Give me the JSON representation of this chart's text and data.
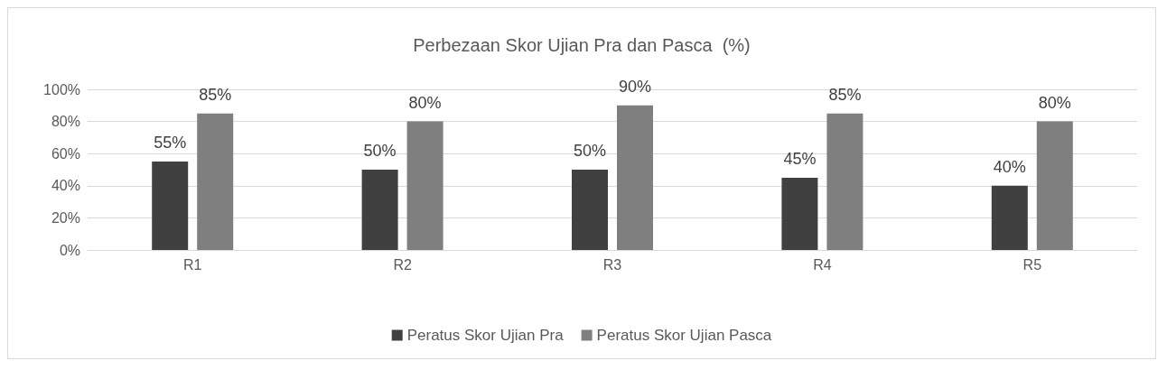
{
  "chart_data": {
    "type": "bar",
    "title": "Perbezaan Skor Ujian Pra dan Pasca  (%)",
    "categories": [
      "R1",
      "R2",
      "R3",
      "R4",
      "R5"
    ],
    "series": [
      {
        "name": "Peratus Skor Ujian Pra",
        "color": "#404040",
        "values": [
          55,
          50,
          50,
          45,
          40
        ],
        "value_labels": [
          "55%",
          "50%",
          "50%",
          "45%",
          "40%"
        ]
      },
      {
        "name": "Peratus Skor Ujian Pasca",
        "color": "#7f7f7f",
        "values": [
          85,
          80,
          90,
          85,
          80
        ],
        "value_labels": [
          "85%",
          "80%",
          "90%",
          "85%",
          "80%"
        ]
      }
    ],
    "ylim": [
      0,
      100
    ],
    "yticks": [
      {
        "value": 0,
        "label": "0%"
      },
      {
        "value": 20,
        "label": "20%"
      },
      {
        "value": 40,
        "label": "40%"
      },
      {
        "value": 60,
        "label": "60%"
      },
      {
        "value": 80,
        "label": "80%"
      },
      {
        "value": 100,
        "label": "100%"
      }
    ],
    "grid": "y",
    "legend": "bottom"
  }
}
